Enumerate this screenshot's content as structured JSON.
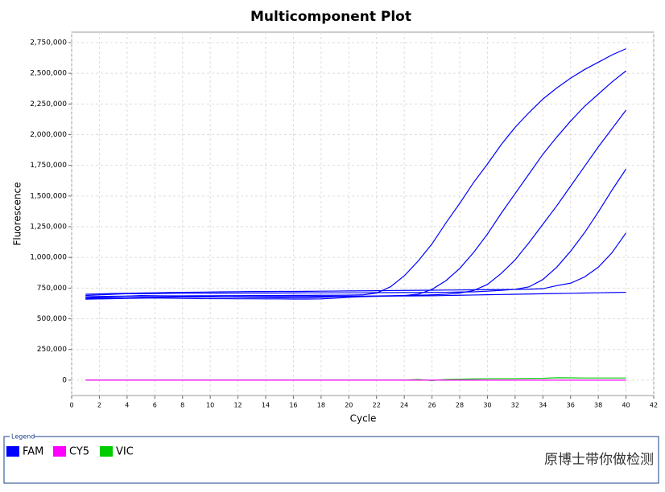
{
  "chart_data": {
    "type": "line",
    "title": "Multicomponent Plot",
    "x_label": "Cycle",
    "y_label": "Fluorescence",
    "x": [
      1,
      2,
      3,
      4,
      5,
      6,
      7,
      8,
      9,
      10,
      11,
      12,
      13,
      14,
      15,
      16,
      17,
      18,
      19,
      20,
      21,
      22,
      23,
      24,
      25,
      26,
      27,
      28,
      29,
      30,
      31,
      32,
      33,
      34,
      35,
      36,
      37,
      38,
      39,
      40
    ],
    "xlim": [
      0,
      42
    ],
    "xticks": [
      0,
      2,
      4,
      6,
      8,
      10,
      12,
      14,
      16,
      18,
      20,
      22,
      24,
      26,
      28,
      30,
      32,
      34,
      36,
      38,
      40,
      42
    ],
    "ylim": [
      -125000,
      2835000
    ],
    "yticks": [
      0,
      {
        "value": 250000,
        "label": "250,000"
      },
      {
        "value": 500000,
        "label": "500,000"
      },
      {
        "value": 750000,
        "label": "750,000"
      },
      {
        "value": 1000000,
        "label": "1,000,000"
      },
      {
        "value": 1250000,
        "label": "1,250,000"
      },
      {
        "value": 1500000,
        "label": "1,500,000"
      },
      {
        "value": 1750000,
        "label": "1,750,000"
      },
      {
        "value": 2000000,
        "label": "2,000,000"
      },
      {
        "value": 2250000,
        "label": "2,250,000"
      },
      {
        "value": 2500000,
        "label": "2,500,000"
      },
      {
        "value": 2750000,
        "label": "2,750,000"
      }
    ],
    "grid": true,
    "legend_title": "Legend",
    "series": [
      {
        "name": "FAM",
        "color": "#0000ff",
        "values": [
          [
            680000,
            682000,
            684000,
            685000,
            686000,
            686000,
            687000,
            687000,
            688000,
            688000,
            689000,
            689000,
            690000,
            690000,
            690000,
            691000,
            691000,
            692000,
            692000,
            693000,
            695000,
            710000,
            760000,
            850000,
            970000,
            1110000,
            1280000,
            1440000,
            1610000,
            1760000,
            1920000,
            2060000,
            2180000,
            2290000,
            2380000,
            2460000,
            2530000,
            2590000,
            2650000,
            2700000
          ],
          [
            665000,
            668000,
            670000,
            672000,
            675000,
            676000,
            677000,
            678000,
            678000,
            679000,
            679000,
            680000,
            680000,
            681000,
            681000,
            682000,
            682000,
            683000,
            683000,
            684000,
            684000,
            685000,
            686000,
            690000,
            700000,
            740000,
            810000,
            910000,
            1040000,
            1190000,
            1360000,
            1520000,
            1680000,
            1840000,
            1980000,
            2110000,
            2230000,
            2330000,
            2430000,
            2520000
          ],
          [
            672000,
            675000,
            680000,
            685000,
            690000,
            688000,
            686000,
            684000,
            682000,
            680000,
            678000,
            676000,
            675000,
            674000,
            673000,
            672000,
            672000,
            675000,
            680000,
            682000,
            684000,
            686000,
            688000,
            690000,
            692000,
            695000,
            700000,
            710000,
            730000,
            780000,
            870000,
            980000,
            1120000,
            1270000,
            1420000,
            1580000,
            1740000,
            1900000,
            2050000,
            2200000
          ],
          [
            690000,
            695000,
            700000,
            705000,
            705000,
            706000,
            707000,
            708000,
            708000,
            708000,
            709000,
            710000,
            710000,
            710000,
            710000,
            711000,
            712000,
            712000,
            712000,
            712000,
            712000,
            713000,
            713000,
            714000,
            714000,
            715000,
            716000,
            718000,
            720000,
            725000,
            732000,
            740000,
            760000,
            820000,
            920000,
            1050000,
            1200000,
            1370000,
            1550000,
            1720000
          ],
          [
            700000,
            703000,
            706000,
            708000,
            710000,
            712000,
            714000,
            716000,
            717000,
            718000,
            720000,
            721000,
            722000,
            722000,
            723000,
            723000,
            724000,
            725000,
            726000,
            727000,
            728000,
            729000,
            730000,
            731000,
            732000,
            733000,
            734000,
            735000,
            736000,
            737000,
            738000,
            739000,
            741000,
            745000,
            770000,
            790000,
            840000,
            920000,
            1040000,
            1200000
          ],
          [
            660000,
            662000,
            664000,
            666000,
            668000,
            670000,
            668000,
            666000,
            665000,
            664000,
            664000,
            663000,
            663000,
            662000,
            662000,
            661000,
            661000,
            662000,
            668000,
            675000,
            680000,
            683000,
            685000,
            686000,
            687000,
            688000,
            690000,
            692000,
            694000,
            696000,
            698000,
            700000,
            702000,
            704000,
            706000,
            708000,
            710000,
            712000,
            714000,
            716000
          ]
        ]
      },
      {
        "name": "CY5",
        "color": "#ff00ff",
        "values": [
          [
            0,
            0,
            0,
            0,
            0,
            0,
            0,
            0,
            0,
            0,
            0,
            0,
            0,
            0,
            0,
            0,
            0,
            0,
            0,
            0,
            0,
            0,
            0,
            0,
            0,
            0,
            0,
            0,
            0,
            0,
            0,
            0,
            0,
            0,
            0,
            0,
            0,
            0,
            0,
            0
          ]
        ]
      },
      {
        "name": "VIC",
        "color": "#00cc00",
        "values": [
          [
            0,
            0,
            0,
            0,
            0,
            0,
            0,
            0,
            0,
            0,
            0,
            0,
            0,
            0,
            0,
            0,
            0,
            0,
            0,
            0,
            0,
            0,
            0,
            0,
            5000,
            -3000,
            5000,
            8000,
            10000,
            12000,
            13000,
            13000,
            14000,
            15000,
            20000,
            19000,
            18000,
            18000,
            18000,
            18000
          ]
        ]
      }
    ]
  },
  "watermark": "原博士带你做检测"
}
